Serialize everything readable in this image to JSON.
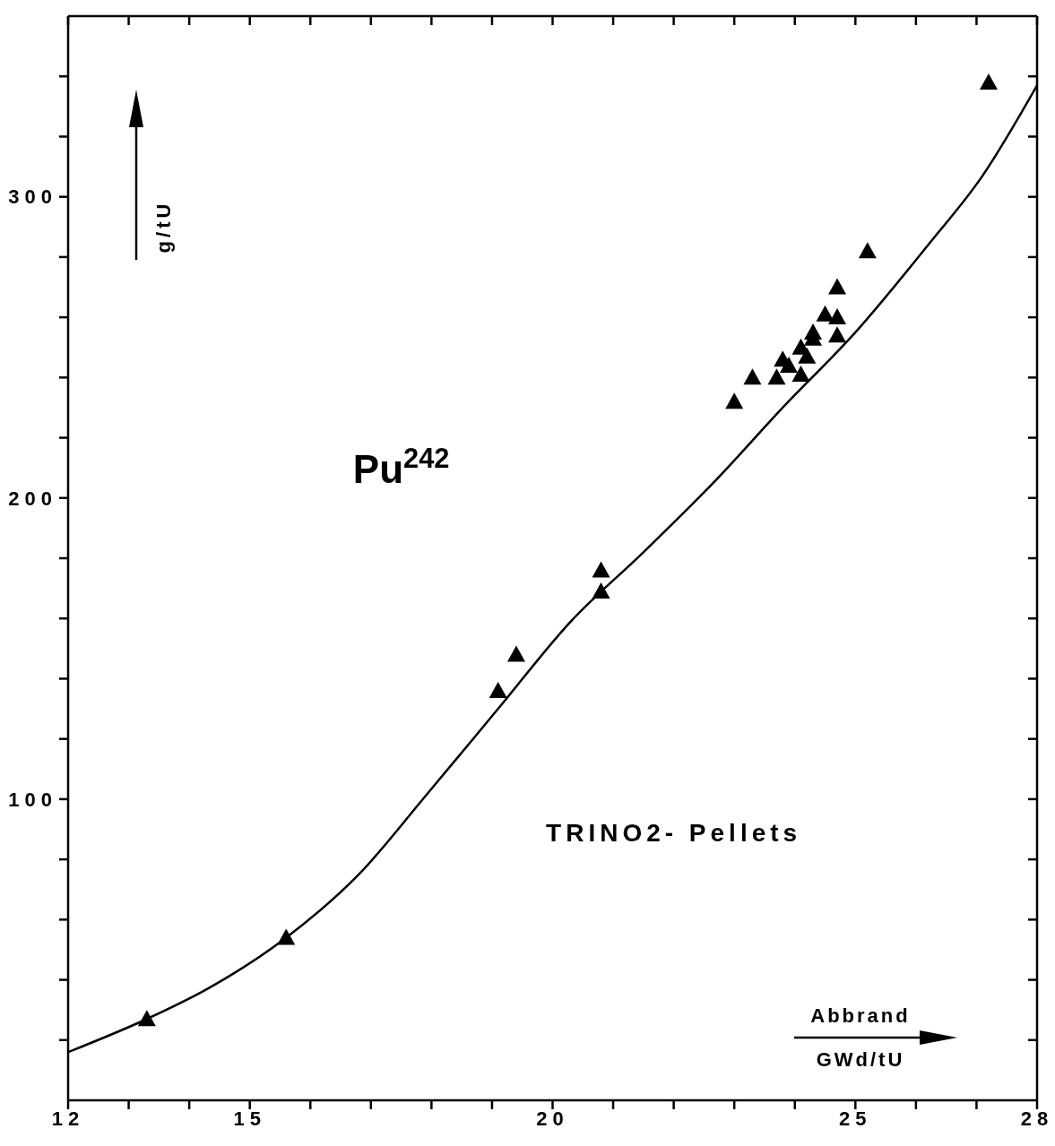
{
  "chart_data": {
    "type": "scatter",
    "xlabel": "Abbrand GWd/tU",
    "ylabel": "g/tU",
    "annotations": [
      "Pu$^{242}$",
      "TRINO2- Pellets"
    ],
    "xlim": [
      12,
      28
    ],
    "xticks": [
      12,
      {
        "value": 13,
        "label": null
      },
      {
        "value": 14,
        "label": null
      },
      15,
      {
        "value": 16,
        "label": null
      },
      {
        "value": 17,
        "label": null
      },
      {
        "value": 18,
        "label": null
      },
      {
        "value": 19,
        "label": null
      },
      20,
      {
        "value": 21,
        "label": null
      },
      {
        "value": 22,
        "label": null
      },
      {
        "value": 23,
        "label": null
      },
      {
        "value": 24,
        "label": null
      },
      25,
      {
        "value": 26,
        "label": null
      },
      {
        "value": 27,
        "label": null
      },
      28
    ],
    "ylim": [
      0,
      360
    ],
    "yticks": [
      {
        "value": 20,
        "label": null
      },
      {
        "value": 40,
        "label": null
      },
      {
        "value": 60,
        "label": null
      },
      {
        "value": 80,
        "label": null
      },
      100,
      {
        "value": 120,
        "label": null
      },
      {
        "value": 140,
        "label": null
      },
      {
        "value": 160,
        "label": null
      },
      {
        "value": 180,
        "label": null
      },
      200,
      {
        "value": 220,
        "label": null
      },
      {
        "value": 240,
        "label": null
      },
      {
        "value": 260,
        "label": null
      },
      {
        "value": 280,
        "label": null
      },
      300,
      {
        "value": 320,
        "label": null
      },
      {
        "value": 340,
        "label": null
      }
    ],
    "grid": false,
    "legend": false,
    "series": [
      {
        "type": "scatter",
        "color": "#000000",
        "marker": "triangle",
        "x": [
          13.3,
          15.6,
          19.1,
          19.4,
          20.8,
          20.8,
          23.0,
          23.3,
          23.7,
          23.8,
          23.9,
          24.1,
          24.1,
          24.2,
          24.3,
          24.3,
          24.5,
          24.7,
          24.7,
          24.7,
          25.2,
          27.2
        ],
        "values": [
          27,
          54,
          136,
          148,
          176,
          169,
          232,
          240,
          240,
          246,
          244,
          250,
          241,
          247,
          255,
          253,
          261,
          270,
          254,
          260,
          282,
          338
        ]
      },
      {
        "type": "line",
        "color": "#000000",
        "marker": "none",
        "line_style": "solid",
        "x": [
          12,
          13.3,
          14.3,
          15.6,
          16.8,
          17.9,
          19.1,
          20.3,
          21.5,
          22.7,
          23.8,
          25.0,
          26.2,
          27.1,
          28.0
        ],
        "values": [
          16,
          27,
          37,
          54,
          75,
          101,
          130,
          159,
          182,
          206,
          230,
          255,
          284,
          307,
          337
        ]
      }
    ]
  }
}
